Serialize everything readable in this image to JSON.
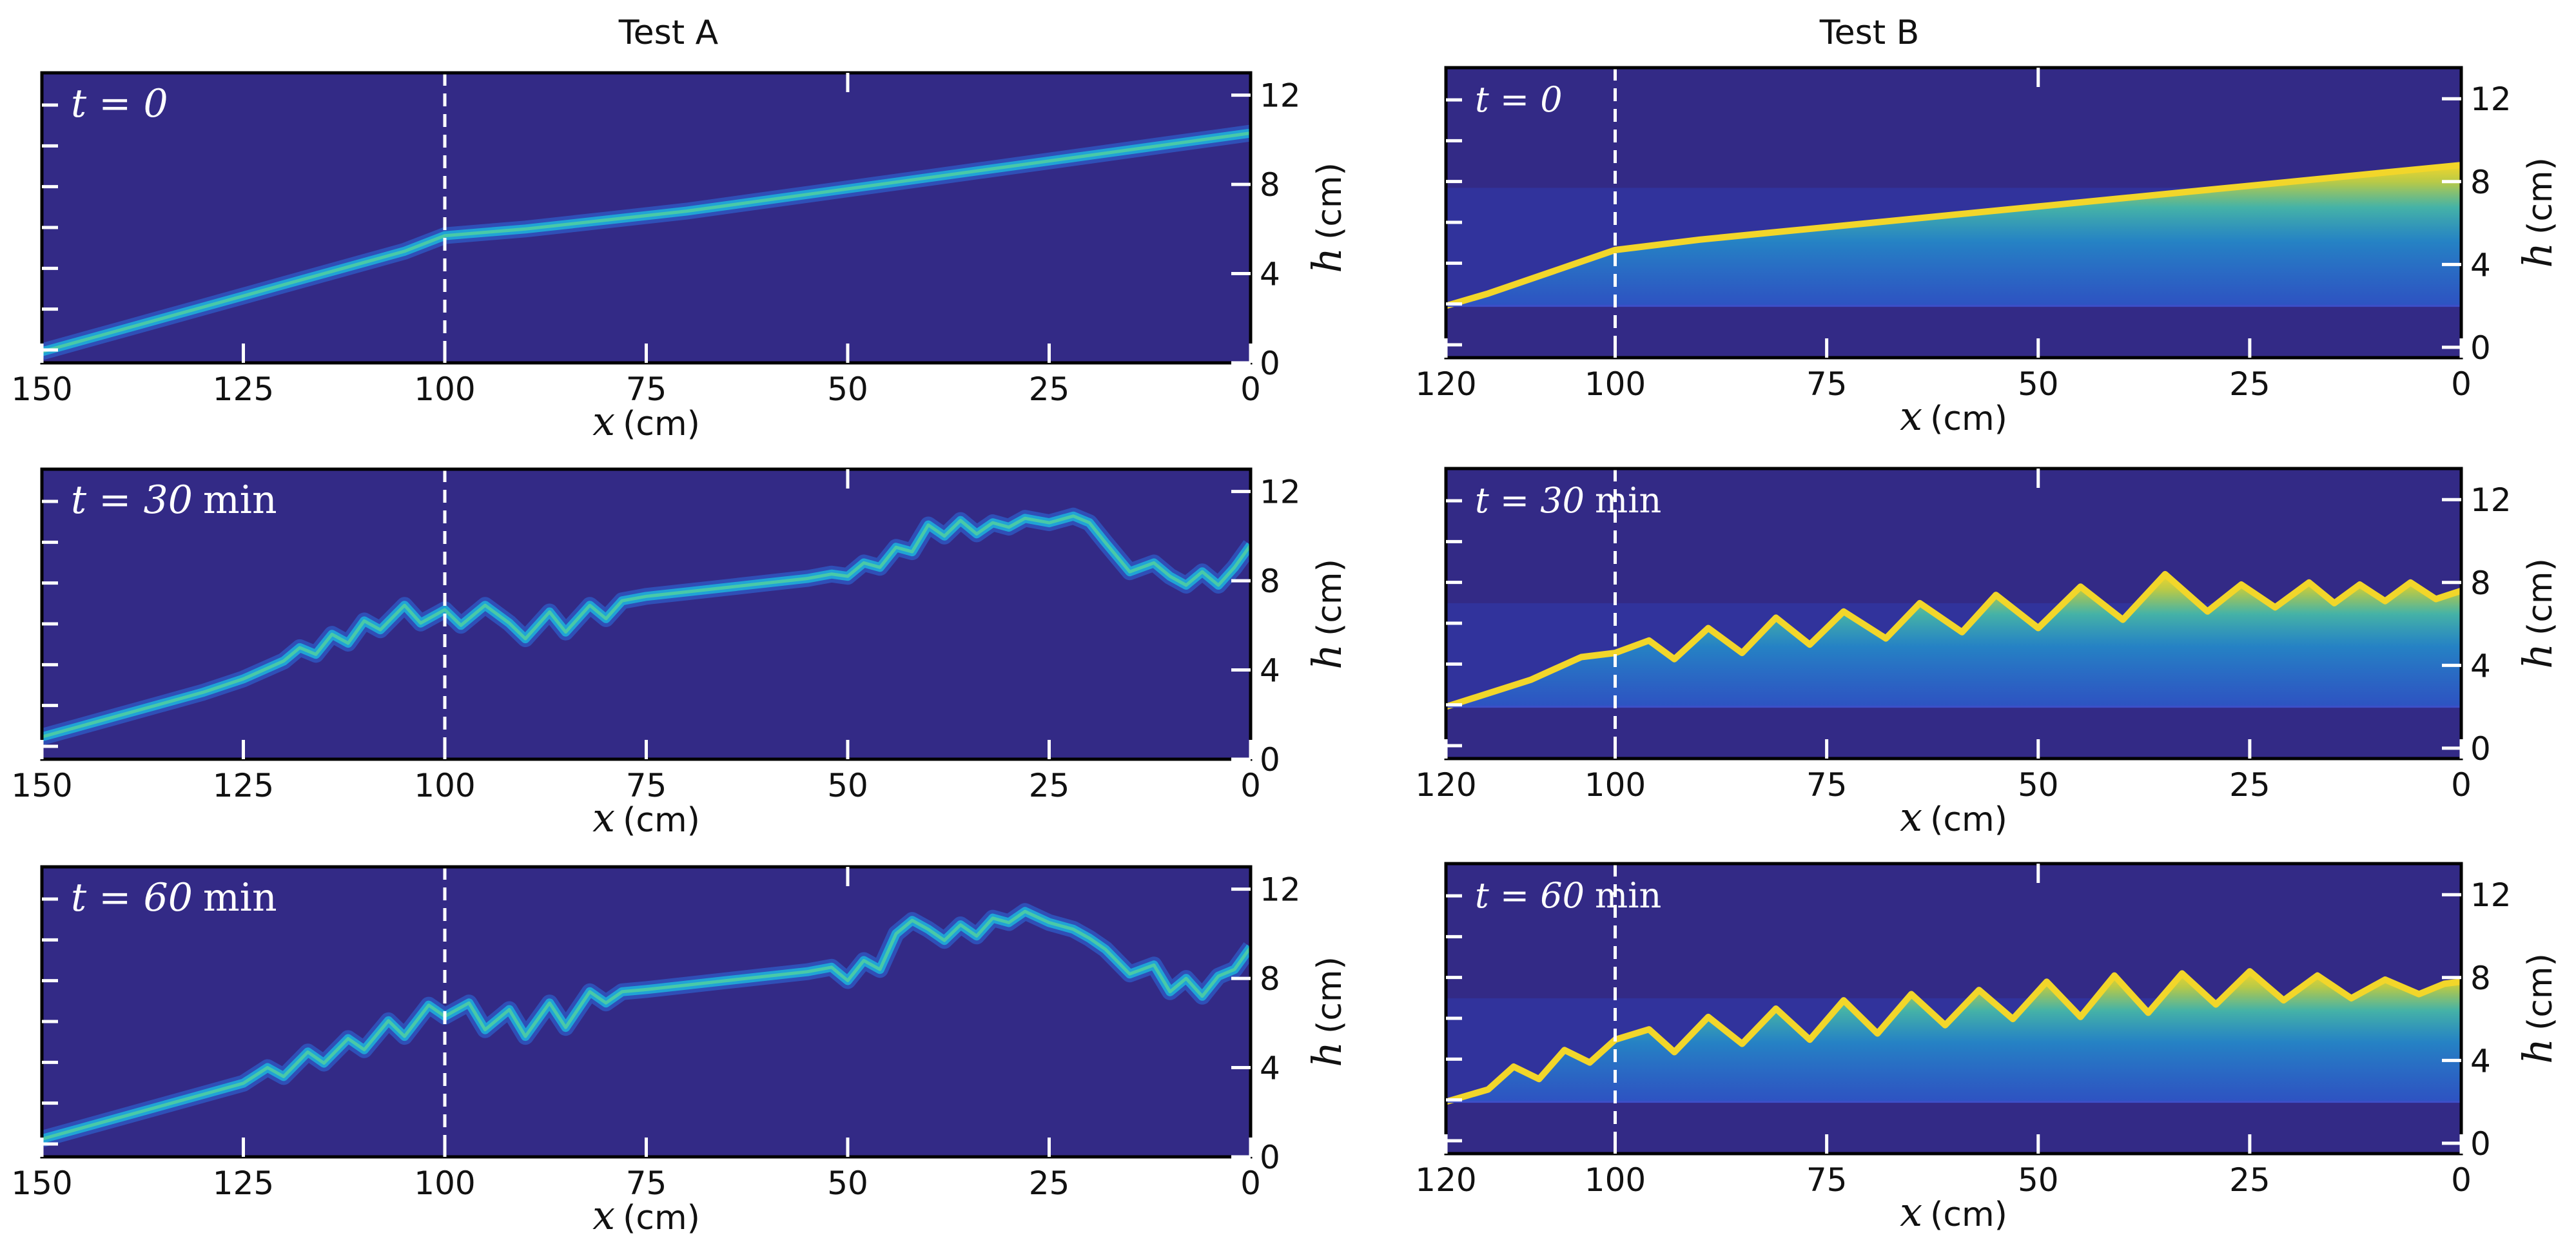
{
  "figure": {
    "background": "#ffffff",
    "plot_bg": "#332a86",
    "colormap": [
      "#332a86",
      "#2f3eb8",
      "#2b6de0",
      "#20a3d6",
      "#49c9a8",
      "#bfd244",
      "#f2d62a"
    ]
  },
  "columns": [
    {
      "title": "Test A"
    },
    {
      "title": "Test B"
    }
  ],
  "chart_data": [
    {
      "type": "heatmap",
      "test": "A",
      "label_italic": "t = 0",
      "label_unit": "",
      "xlabel_var": "x",
      "xlabel_unit": "(cm)",
      "ylabel_var": "h",
      "ylabel_unit": "(cm)",
      "xlim": [
        150,
        0
      ],
      "ylim": [
        0,
        13
      ],
      "xticks": [
        150,
        125,
        100,
        75,
        50,
        25,
        0
      ],
      "yticks": [
        0,
        4,
        8,
        12
      ],
      "interface_x": 100,
      "profile": {
        "x": [
          150,
          145,
          140,
          135,
          130,
          125,
          120,
          115,
          110,
          105,
          100,
          90,
          80,
          70,
          60,
          50,
          40,
          30,
          20,
          10,
          0
        ],
        "h": [
          0.5,
          1.0,
          1.5,
          2.0,
          2.5,
          3.0,
          3.5,
          4.0,
          4.5,
          5.0,
          5.7,
          6.0,
          6.4,
          6.8,
          7.3,
          7.8,
          8.3,
          8.8,
          9.3,
          9.8,
          10.3
        ]
      }
    },
    {
      "type": "heatmap",
      "test": "A",
      "label_italic": "t = 30",
      "label_unit": "min",
      "xlabel_var": "x",
      "xlabel_unit": "(cm)",
      "ylabel_var": "h",
      "ylabel_unit": "(cm)",
      "xlim": [
        150,
        0
      ],
      "ylim": [
        0,
        13
      ],
      "xticks": [
        150,
        125,
        100,
        75,
        50,
        25,
        0
      ],
      "yticks": [
        0,
        4,
        8,
        12
      ],
      "interface_x": 100,
      "profile": {
        "x": [
          150,
          140,
          130,
          125,
          120,
          118,
          116,
          114,
          112,
          110,
          108,
          105,
          103,
          100,
          98,
          95,
          92,
          90,
          87,
          85,
          82,
          80,
          78,
          75,
          70,
          65,
          60,
          55,
          52,
          50,
          48,
          46,
          44,
          42,
          40,
          38,
          36,
          34,
          32,
          30,
          28,
          25,
          22,
          20,
          18,
          15,
          12,
          10,
          8,
          6,
          4,
          2,
          0
        ],
        "h": [
          1.0,
          2.0,
          3.0,
          3.6,
          4.4,
          5.0,
          4.7,
          5.6,
          5.2,
          6.2,
          5.8,
          6.9,
          6.1,
          6.7,
          6.0,
          6.9,
          6.1,
          5.4,
          6.6,
          5.7,
          6.9,
          6.3,
          7.1,
          7.3,
          7.5,
          7.7,
          7.9,
          8.1,
          8.3,
          8.2,
          8.8,
          8.6,
          9.5,
          9.3,
          10.5,
          10.0,
          10.7,
          10.1,
          10.6,
          10.4,
          10.8,
          10.6,
          10.9,
          10.6,
          9.7,
          8.4,
          8.8,
          8.2,
          7.8,
          8.4,
          7.8,
          8.6,
          9.6
        ]
      }
    },
    {
      "type": "heatmap",
      "test": "A",
      "label_italic": "t = 60",
      "label_unit": "min",
      "xlabel_var": "x",
      "xlabel_unit": "(cm)",
      "ylabel_var": "h",
      "ylabel_unit": "(cm)",
      "xlim": [
        150,
        0
      ],
      "ylim": [
        0,
        13
      ],
      "xticks": [
        150,
        125,
        100,
        75,
        50,
        25,
        0
      ],
      "yticks": [
        0,
        4,
        8,
        12
      ],
      "interface_x": 100,
      "profile": {
        "x": [
          150,
          140,
          130,
          125,
          122,
          120,
          117,
          115,
          112,
          110,
          107,
          105,
          102,
          100,
          97,
          95,
          92,
          90,
          87,
          85,
          82,
          80,
          78,
          75,
          70,
          65,
          60,
          55,
          52,
          50,
          48,
          46,
          44,
          42,
          40,
          38,
          36,
          34,
          32,
          30,
          28,
          25,
          22,
          20,
          18,
          15,
          12,
          10,
          8,
          6,
          4,
          2,
          0
        ],
        "h": [
          0.8,
          1.8,
          2.8,
          3.3,
          4.0,
          3.6,
          4.7,
          4.2,
          5.3,
          4.8,
          6.1,
          5.4,
          6.8,
          6.3,
          6.9,
          5.7,
          6.6,
          5.4,
          6.9,
          5.8,
          7.4,
          6.9,
          7.4,
          7.5,
          7.7,
          7.9,
          8.1,
          8.3,
          8.5,
          7.9,
          8.8,
          8.4,
          10.0,
          10.6,
          10.2,
          9.7,
          10.4,
          9.9,
          10.7,
          10.5,
          11.0,
          10.5,
          10.2,
          9.8,
          9.3,
          8.2,
          8.6,
          7.4,
          8.0,
          7.2,
          8.1,
          8.4,
          9.4
        ]
      }
    },
    {
      "type": "heatmap",
      "test": "B",
      "label_italic": "t = 0",
      "label_unit": "",
      "xlabel_var": "x",
      "xlabel_unit": "(cm)",
      "ylabel_var": "h",
      "ylabel_unit": "(cm)",
      "xlim": [
        120,
        0
      ],
      "ylim": [
        -0.5,
        13.5
      ],
      "xticks": [
        120,
        100,
        75,
        50,
        25,
        0
      ],
      "yticks": [
        0,
        4,
        8,
        12
      ],
      "interface_x": 100,
      "bed_h": 2.0,
      "waterline_h": 7.7,
      "profile": {
        "x": [
          120,
          115,
          110,
          105,
          100,
          90,
          80,
          70,
          60,
          50,
          40,
          30,
          20,
          10,
          0
        ],
        "h": [
          2.0,
          2.6,
          3.3,
          4.0,
          4.7,
          5.2,
          5.6,
          6.0,
          6.4,
          6.8,
          7.2,
          7.6,
          8.0,
          8.4,
          8.8
        ]
      }
    },
    {
      "type": "heatmap",
      "test": "B",
      "label_italic": "t = 30",
      "label_unit": "min",
      "xlabel_var": "x",
      "xlabel_unit": "(cm)",
      "ylabel_var": "h",
      "ylabel_unit": "(cm)",
      "xlim": [
        120,
        0
      ],
      "ylim": [
        -0.5,
        13.5
      ],
      "xticks": [
        120,
        100,
        75,
        50,
        25,
        0
      ],
      "yticks": [
        0,
        4,
        8,
        12
      ],
      "interface_x": 100,
      "bed_h": 2.0,
      "waterline_h": 7.0,
      "profile": {
        "x": [
          120,
          110,
          104,
          100,
          96,
          93,
          89,
          85,
          81,
          77,
          73,
          68,
          64,
          59,
          55,
          50,
          45,
          40,
          35,
          30,
          26,
          22,
          18,
          15,
          12,
          9,
          6,
          3,
          0
        ],
        "h": [
          2.0,
          3.3,
          4.4,
          4.6,
          5.2,
          4.3,
          5.8,
          4.6,
          6.3,
          5.0,
          6.6,
          5.3,
          7.0,
          5.6,
          7.4,
          5.8,
          7.8,
          6.2,
          8.4,
          6.6,
          7.9,
          6.8,
          8.0,
          7.0,
          7.9,
          7.1,
          8.0,
          7.2,
          7.6
        ]
      }
    },
    {
      "type": "heatmap",
      "test": "B",
      "label_italic": "t = 60",
      "label_unit": "min",
      "xlabel_var": "x",
      "xlabel_unit": "(cm)",
      "ylabel_var": "h",
      "ylabel_unit": "(cm)",
      "xlim": [
        120,
        0
      ],
      "ylim": [
        -0.5,
        13.5
      ],
      "xticks": [
        120,
        100,
        75,
        50,
        25,
        0
      ],
      "yticks": [
        0,
        4,
        8,
        12
      ],
      "interface_x": 100,
      "bed_h": 2.0,
      "waterline_h": 7.0,
      "profile": {
        "x": [
          120,
          115,
          112,
          109,
          106,
          103,
          100,
          96,
          93,
          89,
          85,
          81,
          77,
          73,
          69,
          65,
          61,
          57,
          53,
          49,
          45,
          41,
          37,
          33,
          29,
          25,
          21,
          17,
          13,
          9,
          5,
          2,
          0
        ],
        "h": [
          2.0,
          2.6,
          3.7,
          3.1,
          4.5,
          3.9,
          5.0,
          5.5,
          4.4,
          6.1,
          4.8,
          6.5,
          5.0,
          6.9,
          5.3,
          7.2,
          5.7,
          7.4,
          6.0,
          7.8,
          6.1,
          8.1,
          6.3,
          8.2,
          6.7,
          8.3,
          6.9,
          8.1,
          7.0,
          7.9,
          7.2,
          7.7,
          7.8
        ]
      }
    }
  ]
}
